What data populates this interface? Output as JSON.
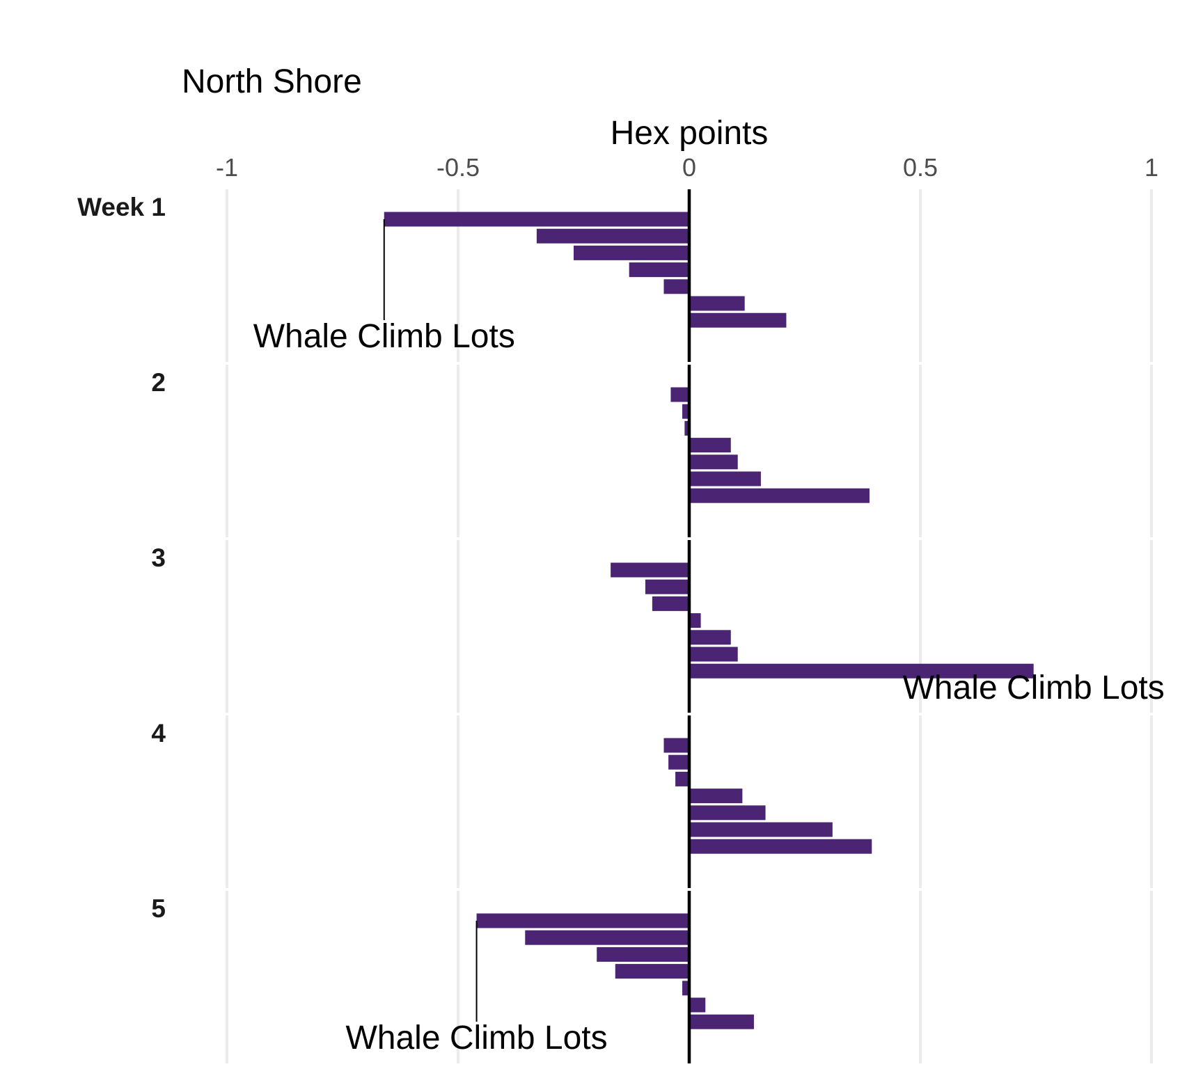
{
  "chart_data": {
    "type": "bar",
    "orientation": "horizontal",
    "title": "North Shore",
    "xlabel": "Hex points",
    "xlim": [
      -1,
      1
    ],
    "x_ticks": [
      -1,
      -0.5,
      0,
      0.5,
      1
    ],
    "x_tick_labels": [
      "-1",
      "-0.5",
      "0",
      "0.5",
      "1"
    ],
    "x_axis_position": "top",
    "grid": true,
    "bar_color": "#4b2473",
    "facets": [
      {
        "label": "Week 1",
        "values": [
          -0.66,
          -0.33,
          -0.25,
          -0.13,
          -0.055,
          0.12,
          0.21
        ],
        "annotation": {
          "text": "Whale Climb Lots",
          "bar_index": 0
        }
      },
      {
        "label": "2",
        "values": [
          -0.04,
          -0.015,
          -0.01,
          0.09,
          0.105,
          0.155,
          0.39
        ],
        "annotation": null
      },
      {
        "label": "3",
        "values": [
          -0.17,
          -0.095,
          -0.08,
          0.025,
          0.09,
          0.105,
          0.745
        ],
        "annotation": {
          "text": "Whale Climb Lots",
          "bar_index": 6
        }
      },
      {
        "label": "4",
        "values": [
          -0.055,
          -0.045,
          -0.03,
          0.115,
          0.165,
          0.31,
          0.395
        ],
        "annotation": null
      },
      {
        "label": "5",
        "values": [
          -0.46,
          -0.355,
          -0.2,
          -0.16,
          -0.015,
          0.035,
          0.14
        ],
        "annotation": {
          "text": "Whale Climb Lots",
          "bar_index": 0
        }
      }
    ]
  }
}
